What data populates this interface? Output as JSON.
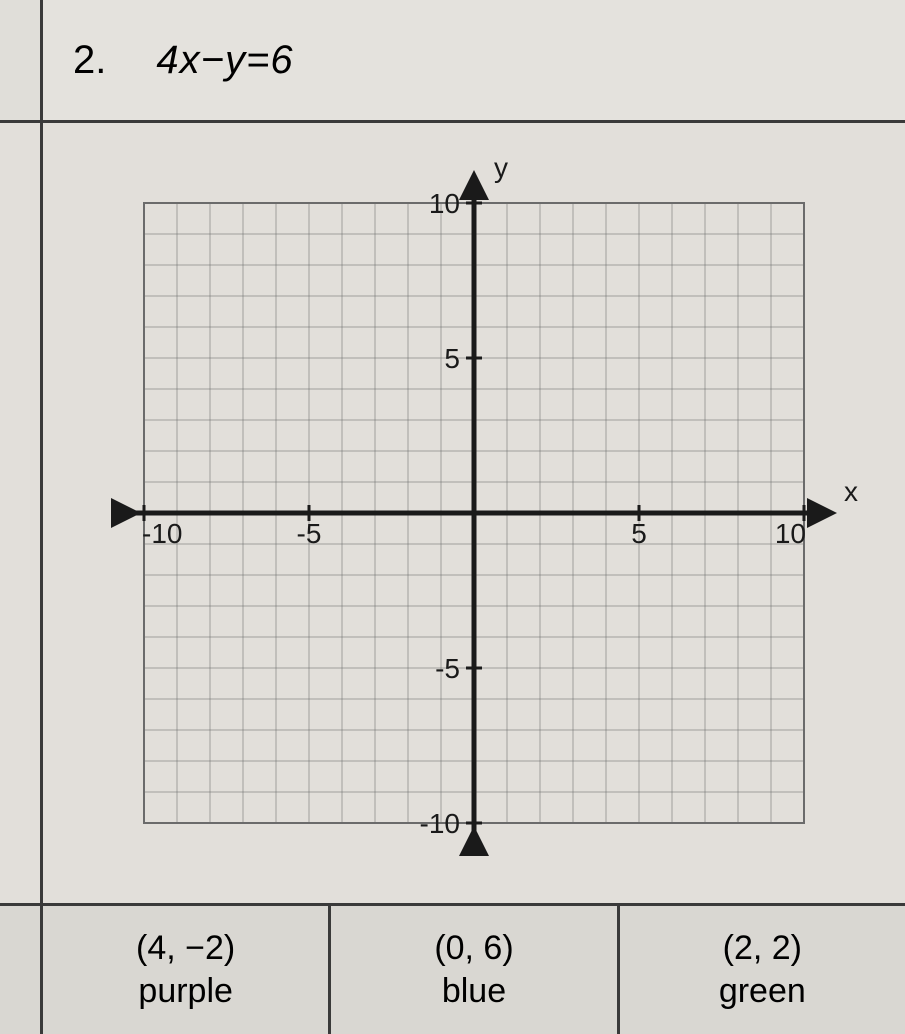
{
  "problem": {
    "number": "2.",
    "equation": "4x−y=6"
  },
  "chart": {
    "type": "coordinate-plane",
    "xlim": [
      -10,
      10
    ],
    "ylim": [
      -10,
      10
    ],
    "xlabel": "x",
    "ylabel": "y",
    "tick_step": 5,
    "grid_step": 1,
    "ticks_x": [
      {
        "v": -10,
        "label": "-10"
      },
      {
        "v": -5,
        "label": "-5"
      },
      {
        "v": 5,
        "label": "5"
      },
      {
        "v": 10,
        "label": "10"
      }
    ],
    "ticks_y": [
      {
        "v": 10,
        "label": "10"
      },
      {
        "v": 5,
        "label": "5"
      },
      {
        "v": -5,
        "label": "-5"
      },
      {
        "v": -10,
        "label": "-10"
      }
    ],
    "axis_color": "#1a1a1a",
    "grid_color": "#6b6b6b",
    "grid_stroke": 1,
    "axis_stroke": 5,
    "background_color": "#e2dfda",
    "label_fontsize": 28,
    "axis_label_fontsize": 28
  },
  "answers": [
    {
      "point": "(4, −2)",
      "color_name": "purple"
    },
    {
      "point": "(0, 6)",
      "color_name": "blue"
    },
    {
      "point": "(2, 2)",
      "color_name": "green"
    }
  ]
}
